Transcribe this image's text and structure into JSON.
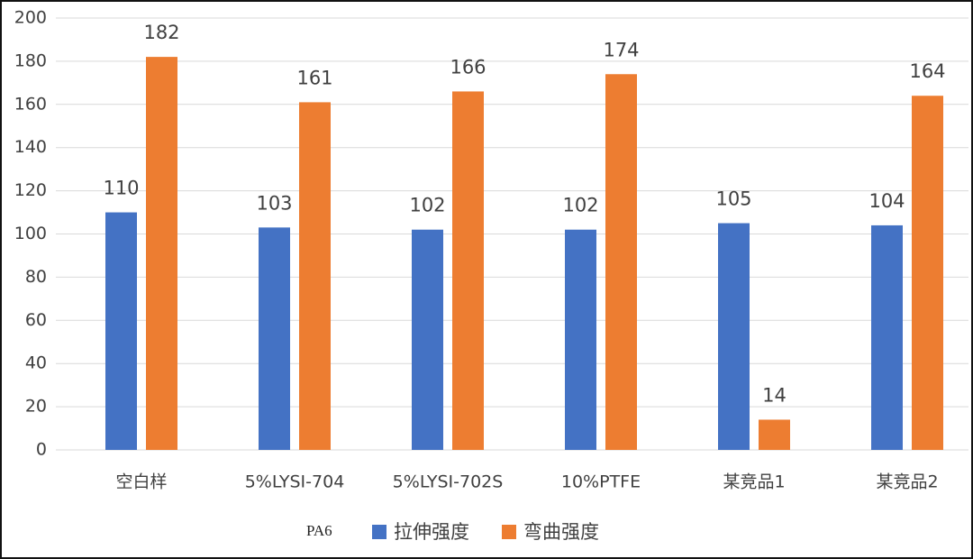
{
  "chart_data": {
    "type": "bar",
    "annotation": "PA6",
    "categories": [
      "空白样",
      "5%LYSI-704",
      "5%LYSI-702S",
      "10%PTFE",
      "某竞品1",
      "某竞品2"
    ],
    "series": [
      {
        "name": "拉伸强度",
        "color": "#4472c4",
        "values": [
          110,
          103,
          102,
          102,
          105,
          104
        ]
      },
      {
        "name": "弯曲强度",
        "color": "#ed7d31",
        "values": [
          182,
          161,
          166,
          174,
          14,
          164
        ]
      }
    ],
    "ylim": [
      0,
      200
    ],
    "yticks": [
      0,
      20,
      40,
      60,
      80,
      100,
      120,
      140,
      160,
      180,
      200
    ],
    "grid": true,
    "data_labels": true,
    "legend": "bottom"
  }
}
